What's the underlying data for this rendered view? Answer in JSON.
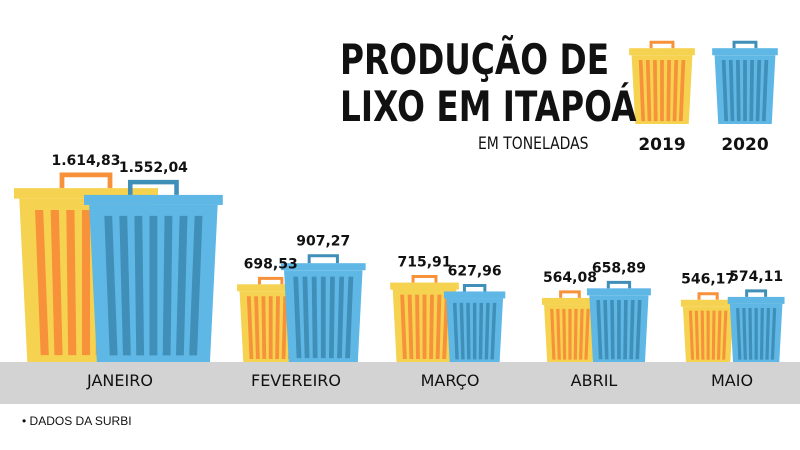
{
  "header": {
    "title_line1": "PRODUÇÃO DE",
    "title_line2": "LIXO EM ITAPOÁ",
    "subtitle": "EM TONELADAS"
  },
  "footnote": "• DADOS DA SURBI",
  "colors": {
    "series_2019_body": "#f5d24f",
    "series_2019_stripe": "#f7913a",
    "series_2020_body": "#5fb7e5",
    "series_2020_stripe": "#3f8fb8",
    "floor": "#d3d3d3"
  },
  "chart_data": {
    "type": "bar",
    "title": "PRODUÇÃO DE LIXO EM ITAPOÁ",
    "subtitle": "EM TONELADAS",
    "categories": [
      "JANEIRO",
      "FEVEREIRO",
      "MARÇO",
      "ABRIL",
      "MAIO"
    ],
    "series": [
      {
        "name": "2019",
        "values": [
          1614.83,
          698.53,
          715.91,
          564.08,
          546.17
        ],
        "labels": [
          "1.614,83",
          "698,53",
          "715,91",
          "564,08",
          "546,17"
        ]
      },
      {
        "name": "2020",
        "values": [
          1552.04,
          907.27,
          627.96,
          658.89,
          574.11
        ],
        "labels": [
          "1.552,04",
          "907,27",
          "627,96",
          "658,89",
          "574,11"
        ]
      }
    ],
    "legend_position": "top-right",
    "grid": false
  }
}
